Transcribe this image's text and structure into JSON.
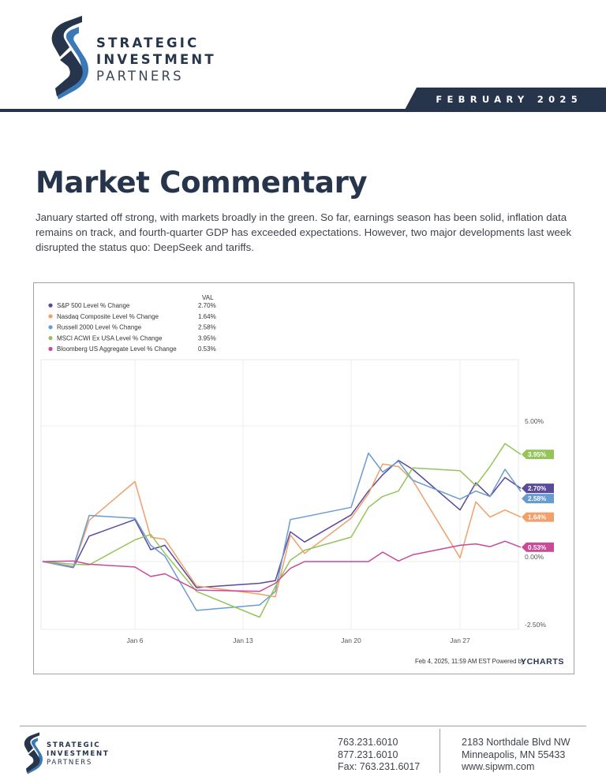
{
  "brand": {
    "name_lines": [
      "STRATEGIC",
      "INVESTMENT",
      "PARTNERS"
    ],
    "colors": {
      "navy": "#26354b",
      "blue": "#3a78b8",
      "text": "#3f444b"
    }
  },
  "header": {
    "date": "FEBRUARY 2025"
  },
  "article": {
    "title": "Market Commentary",
    "intro": "January started off strong, with markets broadly in the green. So far, earnings season has been solid, inflation data remains on track, and fourth-quarter GDP has exceeded expectations. However, two major developments last week disrupted the status quo: DeepSeek and tariffs."
  },
  "chart_data": {
    "type": "line",
    "legend_header": "VAL",
    "legend_placement": "top-left",
    "x_ticks": [
      "Jan 6",
      "Jan 13",
      "Jan 20",
      "Jan 27"
    ],
    "y_ticks": [
      "5.00%",
      "0.00%",
      "-2.50%"
    ],
    "ylim": [
      -2.5,
      5.0
    ],
    "grid": true,
    "footnote": "Feb 4, 2025, 11:59 AM EST Powered by",
    "source": "YCHARTS",
    "x": [
      "Dec 31",
      "Jan 2",
      "Jan 3",
      "Jan 6",
      "Jan 7",
      "Jan 8",
      "Jan 10",
      "Jan 13",
      "Jan 14",
      "Jan 15",
      "Jan 16",
      "Jan 17",
      "Jan 21",
      "Jan 22",
      "Jan 23",
      "Jan 24",
      "Jan 27",
      "Jan 28",
      "Jan 29",
      "Jan 30",
      "Jan 31"
    ],
    "series": [
      {
        "name": "S&P 500 Level % Change",
        "value_label": "2.70%",
        "color": "#5a4a9c",
        "values": [
          0,
          -0.22,
          0.94,
          1.55,
          0.44,
          0.6,
          -0.96,
          -0.8,
          -0.7,
          1.1,
          0.72,
          1.72,
          2.6,
          3.2,
          3.73,
          3.4,
          1.9,
          2.9,
          2.4,
          3.1,
          2.7
        ]
      },
      {
        "name": "Nasdaq Composite Level % Change",
        "value_label": "1.64%",
        "color": "#f0a06a",
        "values": [
          0,
          -0.2,
          1.52,
          2.95,
          0.9,
          0.82,
          -0.9,
          -1.2,
          -1.3,
          0.98,
          0.3,
          1.6,
          2.5,
          3.6,
          3.5,
          3.0,
          0.14,
          2.2,
          1.64,
          1.9,
          1.64
        ]
      },
      {
        "name": "Russell 2000 Level % Change",
        "value_label": "2.58%",
        "color": "#6a9bd0",
        "values": [
          0,
          -0.18,
          1.7,
          1.6,
          0.6,
          0.2,
          -1.8,
          -1.6,
          -1.1,
          1.55,
          1.65,
          2.0,
          4.0,
          3.3,
          3.7,
          3.0,
          2.3,
          2.6,
          2.4,
          3.4,
          2.58
        ]
      },
      {
        "name": "MSCI ACWI Ex USA Level % Change",
        "value_label": "3.95%",
        "color": "#94c45a",
        "values": [
          0,
          -0.1,
          -0.12,
          0.8,
          1.0,
          0.3,
          -1.1,
          -2.05,
          -0.92,
          0.05,
          0.42,
          0.9,
          2.0,
          2.4,
          2.6,
          3.45,
          3.35,
          2.8,
          3.5,
          4.35,
          3.95
        ]
      },
      {
        "name": "Bloomberg US Aggregate Level % Change",
        "value_label": "0.53%",
        "color": "#c84a98",
        "values": [
          0,
          0.02,
          -0.1,
          -0.2,
          -0.55,
          -0.45,
          -1.05,
          -1.1,
          -0.8,
          -0.25,
          0.0,
          0.0,
          0.0,
          0.35,
          0.02,
          0.25,
          0.6,
          0.65,
          0.55,
          0.75,
          0.53
        ]
      }
    ]
  },
  "footer": {
    "phones": [
      "763.231.6010",
      "877.231.6010",
      "Fax: 763.231.6017"
    ],
    "address": [
      "2183 Northdale Blvd NW",
      "Minneapolis, MN 55433",
      "www.sipwm.com"
    ]
  }
}
